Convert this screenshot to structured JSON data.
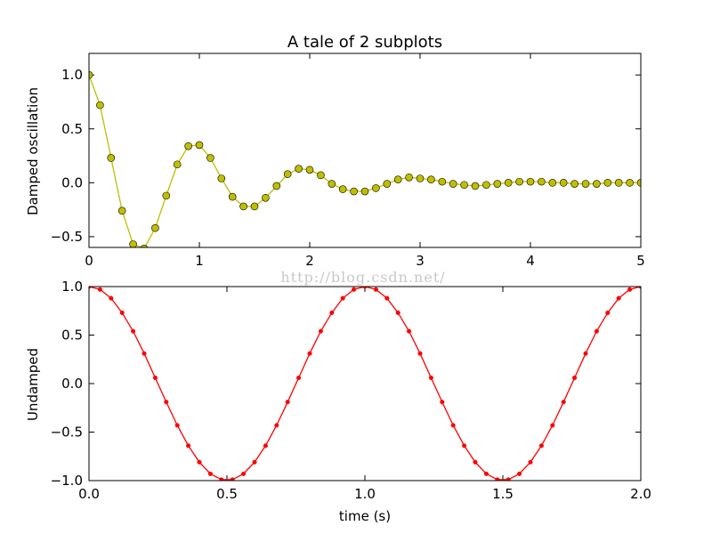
{
  "chart_data": [
    {
      "type": "line",
      "title": "A tale of 2 subplots",
      "xlabel": "",
      "ylabel": "Damped oscillation",
      "xlim": [
        0,
        5
      ],
      "ylim": [
        -0.6,
        1.2
      ],
      "x_ticks": [
        "0",
        "1",
        "2",
        "3",
        "4",
        "5"
      ],
      "y_ticks": [
        "1.0",
        "0.5",
        "0.0",
        "−0.5"
      ],
      "grid": false,
      "marker": "circle",
      "line_color": "#bfbf00",
      "marker_color": "#bfbf00",
      "series": [
        {
          "x": [
            0,
            0.1,
            0.2,
            0.3,
            0.4,
            0.5,
            0.6,
            0.7,
            0.8,
            0.9,
            1.0,
            1.1,
            1.2,
            1.3,
            1.4,
            1.5,
            1.6,
            1.7,
            1.8,
            1.9,
            2.0,
            2.1,
            2.2,
            2.3,
            2.4,
            2.5,
            2.6,
            2.7,
            2.8,
            2.9,
            3.0,
            3.1,
            3.2,
            3.3,
            3.4,
            3.5,
            3.6,
            3.7,
            3.8,
            3.9,
            4.0,
            4.1,
            4.2,
            4.3,
            4.4,
            4.5,
            4.6,
            4.7,
            4.8,
            4.9,
            5.0
          ],
          "y": [
            1.0,
            0.72,
            0.23,
            -0.26,
            -0.57,
            -0.61,
            -0.42,
            -0.12,
            0.17,
            0.34,
            0.35,
            0.23,
            0.04,
            -0.13,
            -0.22,
            -0.22,
            -0.14,
            -0.03,
            0.08,
            0.13,
            0.12,
            0.07,
            -0.01,
            -0.06,
            -0.08,
            -0.08,
            -0.05,
            -0.01,
            0.03,
            0.05,
            0.04,
            0.03,
            0.01,
            -0.01,
            -0.02,
            -0.03,
            -0.02,
            -0.01,
            0.0,
            0.01,
            0.01,
            0.01,
            0.0,
            0.0,
            -0.01,
            -0.01,
            -0.01,
            0.0,
            0.0,
            0.0,
            0.0
          ]
        }
      ]
    },
    {
      "type": "line",
      "title": "",
      "xlabel": "time (s)",
      "ylabel": "Undamped",
      "xlim": [
        0,
        2
      ],
      "ylim": [
        -1,
        1
      ],
      "x_ticks": [
        "0.0",
        "0.5",
        "1.0",
        "1.5",
        "2.0"
      ],
      "y_ticks": [
        "1.0",
        "0.5",
        "0.0",
        "−0.5",
        "−1.0"
      ],
      "grid": false,
      "marker": "dot",
      "line_color": "#ff0000",
      "marker_color": "#ff0000",
      "series": [
        {
          "x": [
            0.0,
            0.04,
            0.08,
            0.12,
            0.16,
            0.2,
            0.24,
            0.28,
            0.32,
            0.36,
            0.4,
            0.44,
            0.48,
            0.52,
            0.56,
            0.6,
            0.64,
            0.68,
            0.72,
            0.76,
            0.8,
            0.84,
            0.88,
            0.92,
            0.96,
            1.0,
            1.04,
            1.08,
            1.12,
            1.16,
            1.2,
            1.24,
            1.28,
            1.32,
            1.36,
            1.4,
            1.44,
            1.48,
            1.52,
            1.56,
            1.6,
            1.64,
            1.68,
            1.72,
            1.76,
            1.8,
            1.84,
            1.88,
            1.92,
            1.96,
            2.0
          ],
          "y": [
            1.0,
            0.97,
            0.88,
            0.73,
            0.54,
            0.31,
            0.06,
            -0.19,
            -0.43,
            -0.64,
            -0.81,
            -0.93,
            -0.99,
            -0.99,
            -0.93,
            -0.81,
            -0.64,
            -0.43,
            -0.19,
            0.06,
            0.31,
            0.54,
            0.73,
            0.88,
            0.97,
            1.0,
            0.97,
            0.88,
            0.73,
            0.54,
            0.31,
            0.06,
            -0.19,
            -0.43,
            -0.64,
            -0.81,
            -0.93,
            -0.99,
            -0.99,
            -0.93,
            -0.81,
            -0.64,
            -0.43,
            -0.19,
            0.06,
            0.31,
            0.54,
            0.73,
            0.88,
            0.97,
            1.0
          ]
        }
      ]
    }
  ],
  "watermark": "http://blog.csdn.net/"
}
